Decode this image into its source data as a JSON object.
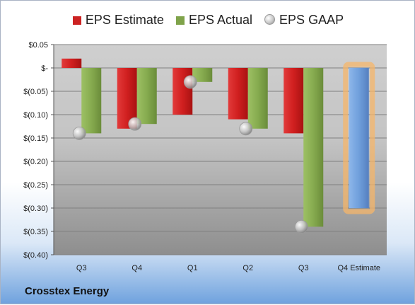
{
  "company": "Crosstex Energy",
  "legend": [
    {
      "name": "EPS Estimate",
      "color": "#cc2222"
    },
    {
      "name": "EPS Actual",
      "color": "#7fa34a"
    },
    {
      "name": "EPS GAAP",
      "color": "#bbbbbb"
    }
  ],
  "chart_data": {
    "type": "bar",
    "categories": [
      "Q3",
      "Q4",
      "Q1",
      "Q2",
      "Q3",
      "Q4 Estimate"
    ],
    "ylim": [
      -0.4,
      0.05
    ],
    "yticks": [
      0.05,
      0,
      -0.05,
      -0.1,
      -0.15,
      -0.2,
      -0.25,
      -0.3,
      -0.35,
      -0.4
    ],
    "ytick_labels": [
      "$0.05",
      "$-",
      "$(0.05)",
      "$(0.10)",
      "$(0.15)",
      "$(0.20)",
      "$(0.25)",
      "$(0.30)",
      "$(0.35)",
      "$(0.40)"
    ],
    "series": [
      {
        "name": "EPS Estimate",
        "values": [
          0.02,
          -0.13,
          -0.1,
          -0.11,
          -0.14,
          null
        ]
      },
      {
        "name": "EPS Actual",
        "values": [
          -0.14,
          -0.12,
          -0.03,
          -0.13,
          -0.34,
          null
        ]
      },
      {
        "name": "EPS GAAP",
        "values": [
          -0.14,
          -0.12,
          -0.03,
          -0.13,
          -0.34,
          null
        ]
      }
    ],
    "forecast": {
      "category": "Q4 Estimate",
      "value": -0.3,
      "color": "#6f9fdc",
      "highlight": "#f5b56a"
    },
    "grid": true
  }
}
